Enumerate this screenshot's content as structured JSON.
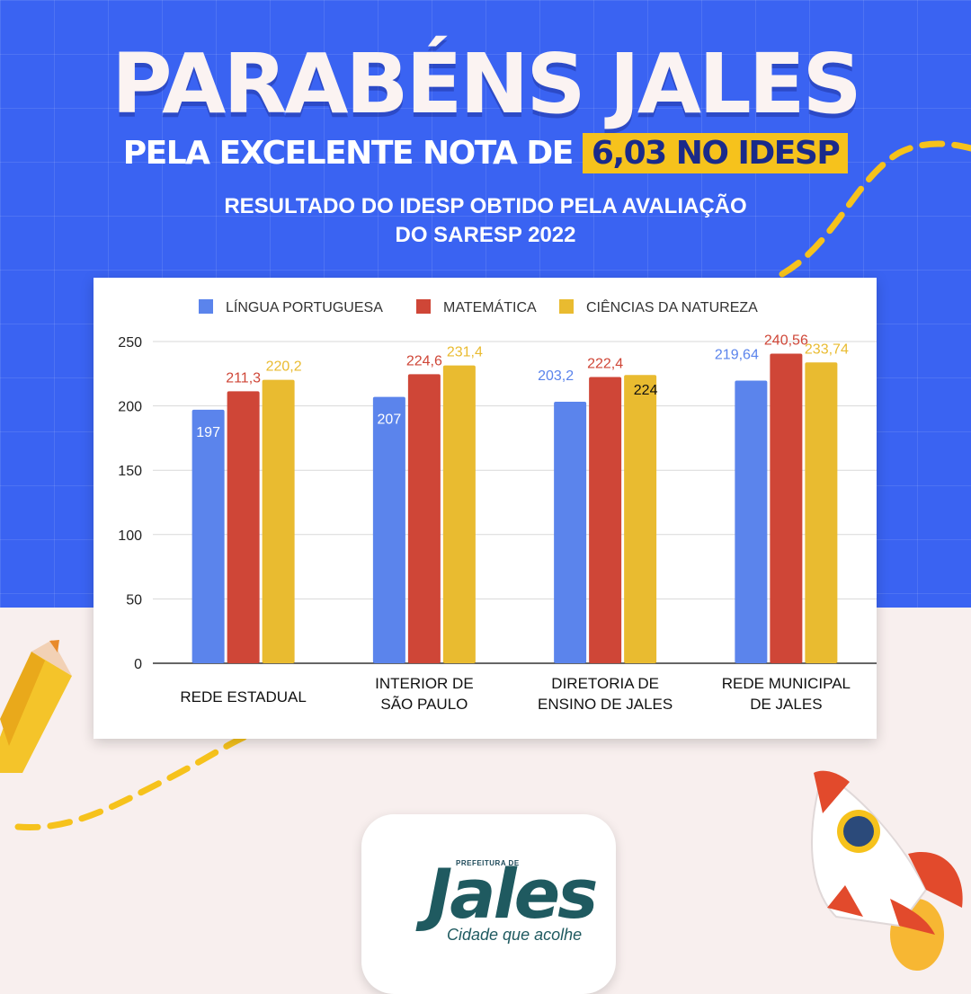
{
  "header": {
    "headline": "PARABÉNS JALES",
    "subline_prefix": "PELA EXCELENTE NOTA DE",
    "subline_highlight": "6,03 NO IDESP",
    "note_line1": "RESULTADO DO IDESP OBTIDO PELA AVALIAÇÃO",
    "note_line2_prefix": "DO ",
    "note_line2_bold": "SARESP 2022"
  },
  "logo": {
    "prefix": "PREFEITURA DE",
    "name": "Jales",
    "tagline": "Cidade que acolhe"
  },
  "colors": {
    "background_blue": "#3a63f2",
    "background_pink": "#f8efee",
    "highlight_yellow": "#f6c21c",
    "series_blue": "#5b84ec",
    "series_red": "#cf4637",
    "series_yellow": "#e9bb30"
  },
  "chart_data": {
    "type": "bar",
    "categories": [
      [
        "REDE ESTADUAL"
      ],
      [
        "INTERIOR DE",
        "SÃO PAULO"
      ],
      [
        "DIRETORIA DE",
        "ENSINO DE JALES"
      ],
      [
        "REDE MUNICIPAL",
        "DE JALES"
      ]
    ],
    "series": [
      {
        "name": "LÍNGUA PORTUGUESA",
        "color": "#5b84ec",
        "values": [
          197,
          207,
          203.2,
          219.64
        ],
        "labels": [
          "197",
          "207",
          "203,2",
          "219,64"
        ]
      },
      {
        "name": "MATEMÁTICA",
        "color": "#cf4637",
        "values": [
          211.3,
          224.6,
          222.4,
          240.56
        ],
        "labels": [
          "211,3",
          "224,6",
          "222,4",
          "240,56"
        ]
      },
      {
        "name": "CIÊNCIAS DA NATUREZA",
        "color": "#e9bb30",
        "values": [
          220.2,
          231.4,
          224,
          233.74
        ],
        "labels": [
          "220,2",
          "231,4",
          "224",
          "233,74"
        ]
      }
    ],
    "yticks": [
      0,
      50,
      100,
      150,
      200,
      250
    ],
    "ylim": [
      0,
      250
    ],
    "grid": true,
    "legend": "top"
  }
}
